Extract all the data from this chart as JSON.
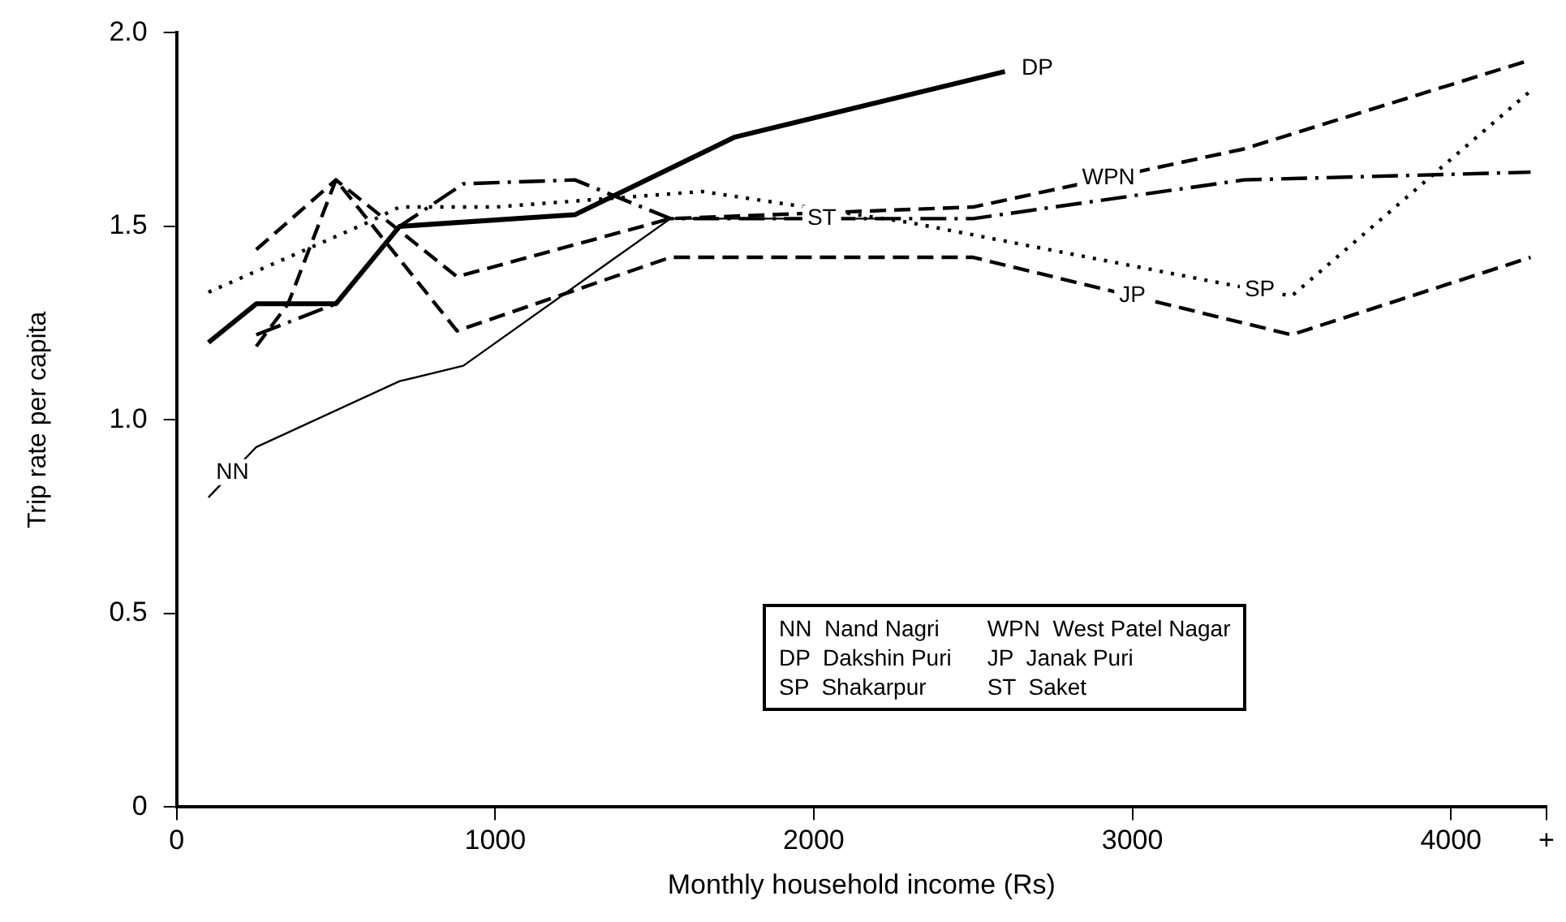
{
  "chart_data": {
    "type": "line",
    "xlabel": "Monthly household income (Rs)",
    "ylabel": "Trip rate per capita",
    "xlim": [
      0,
      4300
    ],
    "xticks": [
      0,
      1000,
      2000,
      3000,
      4000,
      {
        "value": 4300,
        "label": "+"
      }
    ],
    "ylim": [
      0,
      2.0
    ],
    "yticks": [
      0,
      {
        "value": 0.5,
        "label": "0.5"
      },
      {
        "value": 1,
        "label": "1.0"
      },
      {
        "value": 1.5,
        "label": "1.5"
      },
      {
        "value": 2,
        "label": "2.0"
      }
    ],
    "grid": false,
    "legend": false,
    "marker": "none",
    "series": [
      {
        "name": "NN",
        "color": "#000000",
        "line_style": "solid",
        "x": [
          100,
          250,
          700,
          900,
          1550,
          2200
        ],
        "values": [
          0.8,
          0.93,
          1.1,
          1.14,
          1.52,
          1.52
        ]
      },
      {
        "name": "DP",
        "color": "#000000",
        "line_style": "solid",
        "x": [
          100,
          250,
          500,
          700,
          1250,
          1750,
          2600
        ],
        "values": [
          1.2,
          1.3,
          1.3,
          1.5,
          1.53,
          1.73,
          1.9
        ]
      },
      {
        "name": "WPN",
        "color": "#000000",
        "line_style": "dashed",
        "x": [
          250,
          500,
          880,
          1550,
          2500,
          3350,
          4250
        ],
        "values": [
          1.44,
          1.62,
          1.37,
          1.52,
          1.55,
          1.7,
          1.93
        ]
      },
      {
        "name": "JP",
        "color": "#000000",
        "line_style": "dashed",
        "x": [
          250,
          350,
          500,
          880,
          1550,
          2500,
          3500,
          4250
        ],
        "values": [
          1.19,
          1.3,
          1.62,
          1.23,
          1.42,
          1.42,
          1.22,
          1.42
        ]
      },
      {
        "name": "SP",
        "color": "#000000",
        "line_style": "dotted",
        "x": [
          100,
          600,
          700,
          1000,
          1650,
          2300,
          3300,
          3500,
          4250
        ],
        "values": [
          1.33,
          1.51,
          1.55,
          1.55,
          1.59,
          1.51,
          1.35,
          1.32,
          1.85
        ]
      },
      {
        "name": "ST",
        "color": "#000000",
        "line_style": "dashdot",
        "x": [
          250,
          500,
          700,
          900,
          1250,
          1550,
          2500,
          3350,
          4250
        ],
        "values": [
          1.22,
          1.3,
          1.5,
          1.61,
          1.62,
          1.52,
          1.52,
          1.62,
          1.64
        ]
      }
    ],
    "annotations": [
      "NN  Nand Nagri",
      "WPN  West Patel Nagar",
      "DP  Dakshin Puri",
      "JP  Janak Puri",
      "SP  Shakarpur",
      "ST  Saket"
    ]
  }
}
